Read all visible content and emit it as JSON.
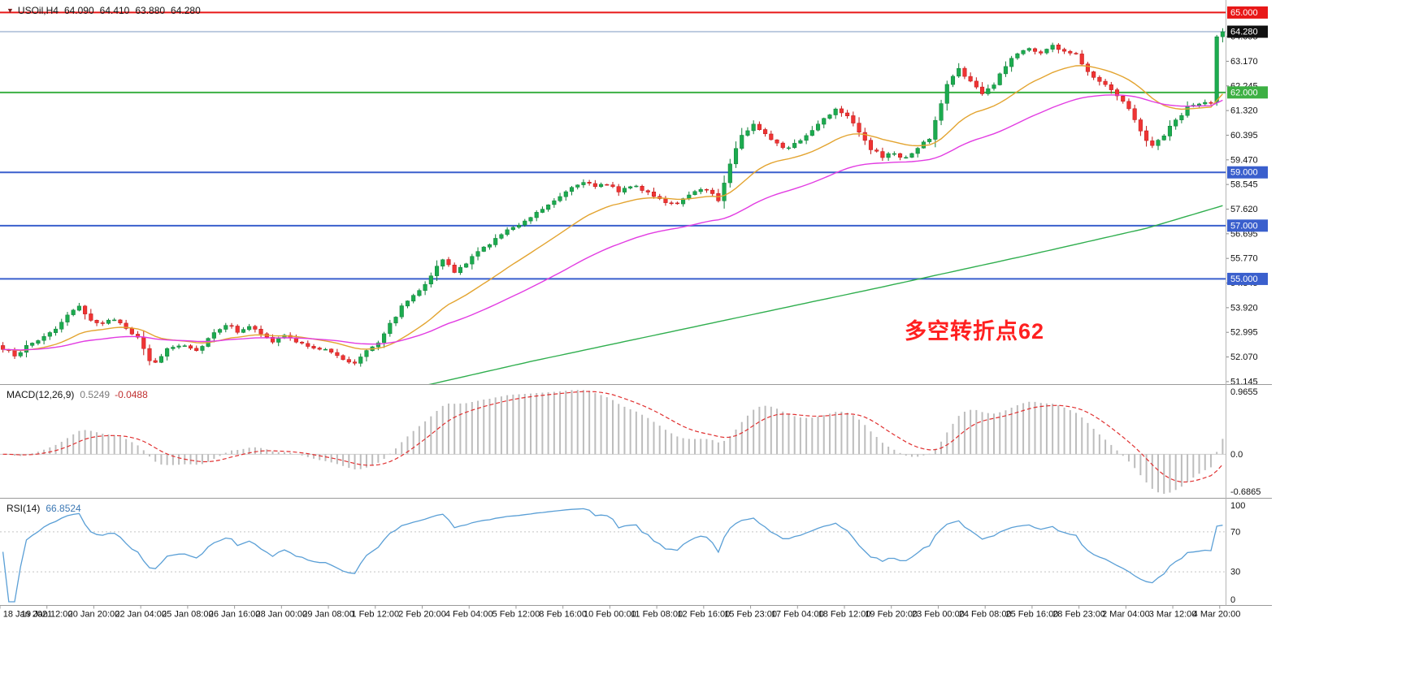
{
  "window": {
    "dropdown_glyph": "▼",
    "symbol_info": "USOil,H4",
    "ohlc": {
      "open": "64.090",
      "high": "64.410",
      "low": "63.880",
      "close": "64.280"
    }
  },
  "annotation": {
    "text": "多空转折点62",
    "color": "#ff2020"
  },
  "indicators": {
    "macd": {
      "label": "MACD(12,26,9)",
      "value_main": "0.5249",
      "value_signal": "-0.0488",
      "scale_max": "0.9655",
      "scale_zero": "0.0",
      "scale_min": "-0.6865"
    },
    "rsi": {
      "label": "RSI(14)",
      "value": "66.8524",
      "scale_labels": [
        "100",
        "70",
        "30",
        "0"
      ],
      "level_lines": [
        70,
        30
      ]
    }
  },
  "price_axis": {
    "tick_top_price": 64.095,
    "tick_step": 0.925,
    "ticks": [
      "64.095",
      "63.170",
      "62.245",
      "61.320",
      "60.395",
      "59.470",
      "58.545",
      "57.620",
      "56.695",
      "55.770",
      "54.845",
      "53.920",
      "52.995",
      "52.070",
      "51.145"
    ],
    "badges": [
      {
        "text": "65.000",
        "price": 65.0,
        "bg": "#e81717",
        "fg": "#ffffff"
      },
      {
        "text": "64.280",
        "price": 64.28,
        "bg": "#101010",
        "fg": "#ffffff"
      },
      {
        "text": "62.000",
        "price": 62.0,
        "bg": "#3cb043",
        "fg": "#ffffff"
      },
      {
        "text": "59.000",
        "price": 59.0,
        "bg": "#3a5fcd",
        "fg": "#ffffff"
      },
      {
        "text": "57.000",
        "price": 57.0,
        "bg": "#3a5fcd",
        "fg": "#ffffff"
      },
      {
        "text": "55.000",
        "price": 55.0,
        "bg": "#3a5fcd",
        "fg": "#ffffff"
      }
    ]
  },
  "levels": [
    {
      "name": "resistance-line-65",
      "price": 65.0,
      "color": "#e81717",
      "width": 2
    },
    {
      "name": "bid-price-line",
      "price": 64.28,
      "color": "#7b97c1",
      "width": 1
    },
    {
      "name": "pivot-line-62",
      "price": 62.0,
      "color": "#3cb043",
      "width": 2
    },
    {
      "name": "support-line-59",
      "price": 59.0,
      "color": "#3a5fcd",
      "width": 2
    },
    {
      "name": "support-line-57",
      "price": 57.0,
      "color": "#3a5fcd",
      "width": 2
    },
    {
      "name": "support-line-55",
      "price": 55.0,
      "color": "#3a5fcd",
      "width": 2
    }
  ],
  "time_axis": [
    "18 Jan 2021",
    "19 Jan 12:00",
    "20 Jan 20:00",
    "22 Jan 04:00",
    "25 Jan 08:00",
    "26 Jan 16:00",
    "28 Jan 00:00",
    "29 Jan 08:00",
    "1 Feb 12:00",
    "2 Feb 20:00",
    "4 Feb 04:00",
    "5 Feb 12:00",
    "8 Feb 16:00",
    "10 Feb 00:00",
    "11 Feb 08:00",
    "12 Feb 16:00",
    "15 Feb 23:00",
    "17 Feb 04:00",
    "18 Feb 12:00",
    "19 Feb 20:00",
    "23 Feb 00:00",
    "24 Feb 08:00",
    "25 Feb 16:00",
    "28 Feb 23:00",
    "2 Mar 04:00",
    "3 Mar 12:00",
    "4 Mar 20:00"
  ],
  "colors": {
    "bull": "#1cab4f",
    "bull_border": "#0f8038",
    "bear": "#ef3434",
    "bear_border": "#c11616",
    "ma_fast": "#e3a430",
    "ma_mid": "#e23ce2",
    "ma_slow": "#2fae4e",
    "macd_hist": "#bdbdbd",
    "macd_signal": "#e03030",
    "macd_zero": "#cfcfcf",
    "rsi_line": "#5a9fd6",
    "rsi_level": "#c4c4c4",
    "axis_text": "#111111",
    "border": "#9a9a9a"
  },
  "chart_data": {
    "type": "candlestick",
    "symbol": "USOil",
    "timeframe": "H4",
    "title": "USOil,H4 64.090 64.410 63.880 64.280",
    "grid": "off",
    "bars_total": 209,
    "bars_per_time_label": 8,
    "price_range_visible": [
      51.05,
      65.47
    ],
    "current_bar_ohlc": [
      64.09,
      64.41,
      63.88,
      64.28
    ],
    "breakout_bar_ohlc": [
      61.62,
      64.16,
      61.5,
      64.09
    ],
    "close_anchors": [
      [
        0,
        52.35
      ],
      [
        2,
        52.15
      ],
      [
        4,
        52.45
      ],
      [
        6,
        52.7
      ],
      [
        9,
        53.15
      ],
      [
        12,
        53.8
      ],
      [
        13,
        53.92
      ],
      [
        15,
        53.5
      ],
      [
        17,
        53.28
      ],
      [
        19,
        53.5
      ],
      [
        21,
        53.2
      ],
      [
        23,
        52.75
      ],
      [
        25,
        51.95
      ],
      [
        26,
        51.82
      ],
      [
        28,
        52.4
      ],
      [
        31,
        52.55
      ],
      [
        33,
        52.3
      ],
      [
        36,
        53.0
      ],
      [
        38,
        53.3
      ],
      [
        40,
        53.05
      ],
      [
        42,
        53.25
      ],
      [
        44,
        52.9
      ],
      [
        46,
        52.65
      ],
      [
        48,
        52.9
      ],
      [
        50,
        52.6
      ],
      [
        53,
        52.45
      ],
      [
        56,
        52.25
      ],
      [
        58,
        51.95
      ],
      [
        60,
        51.85
      ],
      [
        62,
        52.35
      ],
      [
        64,
        52.65
      ],
      [
        66,
        53.3
      ],
      [
        68,
        53.95
      ],
      [
        70,
        54.4
      ],
      [
        72,
        54.85
      ],
      [
        74,
        55.45
      ],
      [
        75,
        55.72
      ],
      [
        77,
        55.25
      ],
      [
        79,
        55.6
      ],
      [
        81,
        56.0
      ],
      [
        83,
        56.35
      ],
      [
        85,
        56.65
      ],
      [
        87,
        56.95
      ],
      [
        89,
        57.2
      ],
      [
        91,
        57.5
      ],
      [
        93,
        57.8
      ],
      [
        95,
        58.15
      ],
      [
        97,
        58.45
      ],
      [
        99,
        58.68
      ],
      [
        101,
        58.42
      ],
      [
        103,
        58.58
      ],
      [
        105,
        58.32
      ],
      [
        107,
        58.5
      ],
      [
        109,
        58.35
      ],
      [
        111,
        58.15
      ],
      [
        113,
        57.9
      ],
      [
        115,
        57.78
      ],
      [
        117,
        58.12
      ],
      [
        119,
        58.42
      ],
      [
        121,
        58.2
      ],
      [
        122,
        57.95
      ],
      [
        124,
        59.35
      ],
      [
        126,
        60.4
      ],
      [
        128,
        60.78
      ],
      [
        130,
        60.48
      ],
      [
        132,
        60.1
      ],
      [
        134,
        59.88
      ],
      [
        136,
        60.22
      ],
      [
        138,
        60.58
      ],
      [
        140,
        61.05
      ],
      [
        142,
        61.38
      ],
      [
        144,
        61.18
      ],
      [
        146,
        60.55
      ],
      [
        148,
        59.88
      ],
      [
        150,
        59.58
      ],
      [
        152,
        59.72
      ],
      [
        154,
        59.52
      ],
      [
        156,
        59.88
      ],
      [
        158,
        60.3
      ],
      [
        159,
        60.9
      ],
      [
        161,
        62.3
      ],
      [
        163,
        62.9
      ],
      [
        165,
        62.4
      ],
      [
        167,
        61.95
      ],
      [
        169,
        62.3
      ],
      [
        171,
        63.0
      ],
      [
        173,
        63.5
      ],
      [
        175,
        63.65
      ],
      [
        177,
        63.5
      ],
      [
        179,
        63.75
      ],
      [
        181,
        63.55
      ],
      [
        183,
        63.4
      ],
      [
        185,
        62.8
      ],
      [
        187,
        62.45
      ],
      [
        189,
        62.15
      ],
      [
        191,
        61.7
      ],
      [
        193,
        61.0
      ],
      [
        195,
        60.2
      ],
      [
        196,
        59.98
      ],
      [
        198,
        60.42
      ],
      [
        200,
        60.95
      ],
      [
        202,
        61.45
      ],
      [
        204,
        61.55
      ],
      [
        206,
        61.62
      ],
      [
        207,
        64.09
      ],
      [
        208,
        64.28
      ]
    ],
    "overlays": [
      {
        "name": "MA-fast",
        "type": "EMA",
        "period": 20,
        "color": "#e3a430"
      },
      {
        "name": "MA-medium",
        "type": "EMA",
        "period": 50,
        "color": "#e23ce2"
      },
      {
        "name": "MA-slow",
        "type": "trend",
        "color": "#2fae4e",
        "anchors": [
          [
            60,
            50.4
          ],
          [
            90,
            51.9
          ],
          [
            120,
            53.3
          ],
          [
            150,
            54.7
          ],
          [
            175,
            55.9
          ],
          [
            195,
            56.9
          ],
          [
            208,
            57.75
          ]
        ]
      }
    ],
    "horizontal_levels": [
      65.0,
      64.28,
      62.0,
      59.0,
      57.0,
      55.0
    ],
    "sub_indicators": [
      {
        "type": "MACD",
        "params": [
          12,
          26,
          9
        ],
        "display_values": [
          0.5249,
          -0.0488
        ],
        "scale": [
          0.9655,
          -0.6865
        ]
      },
      {
        "type": "RSI",
        "params": [
          14
        ],
        "display_value": 66.8524,
        "scale": [
          0,
          100
        ],
        "levels": [
          30,
          70
        ]
      }
    ]
  }
}
